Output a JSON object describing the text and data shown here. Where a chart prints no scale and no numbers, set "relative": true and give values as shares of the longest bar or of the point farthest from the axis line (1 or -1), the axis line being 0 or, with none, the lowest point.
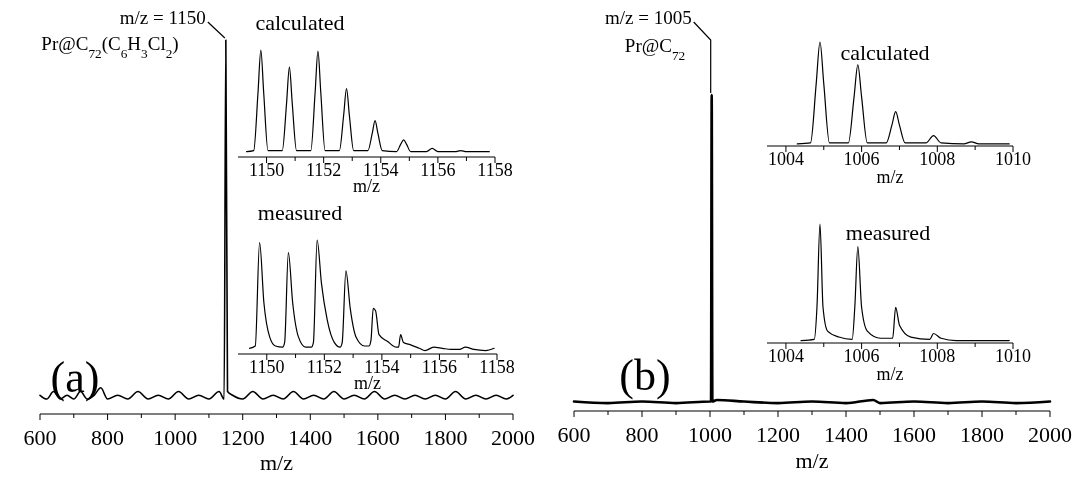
{
  "chart_data": [
    {
      "type": "line",
      "relative": true,
      "xlabel": "m/z",
      "xlim": [
        600,
        2000
      ],
      "xticks": [
        600,
        {
          "value": 700,
          "label": null
        },
        800,
        {
          "value": 900,
          "label": null
        },
        1000,
        {
          "value": 1100,
          "label": null
        },
        1200,
        {
          "value": 1300,
          "label": null
        },
        1400,
        {
          "value": 1500,
          "label": null
        },
        1600,
        {
          "value": 1700,
          "label": null
        },
        1800,
        {
          "value": 1900,
          "label": null
        },
        2000
      ],
      "series": [
        {
          "color": "#000000",
          "x": [
            600,
            620,
            640,
            660,
            680,
            700,
            720,
            740,
            760,
            780,
            800,
            830,
            860,
            890,
            920,
            950,
            980,
            1010,
            1040,
            1070,
            1100,
            1130,
            1145,
            1150,
            1155,
            1170,
            1200,
            1230,
            1260,
            1290,
            1320,
            1350,
            1380,
            1410,
            1440,
            1470,
            1500,
            1530,
            1560,
            1590,
            1620,
            1650,
            1680,
            1710,
            1740,
            1770,
            1800,
            1830,
            1860,
            1890,
            1920,
            1950,
            1980,
            2000
          ],
          "values": [
            0.05,
            0.04,
            0.06,
            0.04,
            0.05,
            0.04,
            0.06,
            0.04,
            0.05,
            0.07,
            0.04,
            0.05,
            0.04,
            0.06,
            0.04,
            0.05,
            0.04,
            0.06,
            0.04,
            0.05,
            0.04,
            0.06,
            0.04,
            1,
            0.06,
            0.05,
            0.04,
            0.06,
            0.04,
            0.05,
            0.04,
            0.06,
            0.04,
            0.05,
            0.04,
            0.06,
            0.04,
            0.05,
            0.04,
            0.06,
            0.04,
            0.05,
            0.04,
            0.05,
            0.04,
            0.05,
            0.04,
            0.06,
            0.04,
            0.05,
            0.04,
            0.05,
            0.04,
            0.05
          ]
        }
      ],
      "annotations": [
        "(a)",
        {
          "text": "m/z = 1150",
          "x": 1150,
          "y": 1
        },
        "Pr@C$_{72}$(C$_{6}$H$_{3}$Cl$_{2}$)"
      ]
    },
    {
      "type": "line",
      "relative": true,
      "title": "calculated",
      "xlabel": "m/z",
      "xlim": [
        1149,
        1158
      ],
      "xticks": [
        1150,
        {
          "value": 1151,
          "label": null
        },
        1152,
        {
          "value": 1153,
          "label": null
        },
        1154,
        {
          "value": 1155,
          "label": null
        },
        1156,
        {
          "value": 1157,
          "label": null
        },
        1158
      ],
      "series": [
        {
          "color": "#000000",
          "x": [
            1149.3,
            1149.55,
            1149.7,
            1149.8,
            1149.9,
            1150.05,
            1150.55,
            1150.7,
            1150.8,
            1150.9,
            1151.05,
            1151.55,
            1151.7,
            1151.8,
            1151.9,
            1152.05,
            1152.55,
            1152.7,
            1152.8,
            1152.9,
            1153.05,
            1153.55,
            1153.7,
            1153.8,
            1153.9,
            1154.05,
            1154.55,
            1154.7,
            1154.8,
            1154.9,
            1155.05,
            1155.6,
            1155.8,
            1156,
            1156.6,
            1156.8,
            1157,
            1157.8
          ],
          "values": [
            0.05,
            0.06,
            0.6,
            1,
            0.6,
            0.06,
            0.06,
            0.5,
            0.84,
            0.5,
            0.06,
            0.06,
            0.6,
            0.99,
            0.6,
            0.06,
            0.06,
            0.39,
            0.64,
            0.39,
            0.06,
            0.06,
            0.22,
            0.34,
            0.22,
            0.06,
            0.05,
            0.12,
            0.16,
            0.12,
            0.05,
            0.05,
            0.08,
            0.05,
            0.05,
            0.06,
            0.05,
            0.05
          ]
        }
      ]
    },
    {
      "type": "line",
      "relative": true,
      "title": "measured",
      "xlabel": "m/z",
      "xlim": [
        1149,
        1158
      ],
      "xticks": [
        1150,
        {
          "value": 1151,
          "label": null
        },
        1152,
        {
          "value": 1153,
          "label": null
        },
        1154,
        {
          "value": 1155,
          "label": null
        },
        1156,
        {
          "value": 1157,
          "label": null
        },
        1158
      ],
      "series": [
        {
          "color": "#000000",
          "x": [
            1149.4,
            1149.6,
            1149.75,
            1149.9,
            1150.1,
            1150.3,
            1150.55,
            1150.62,
            1150.75,
            1150.9,
            1151.1,
            1151.35,
            1151.55,
            1151.62,
            1151.75,
            1151.9,
            1152.1,
            1152.35,
            1152.55,
            1152.62,
            1152.75,
            1152.9,
            1153.1,
            1153.4,
            1153.55,
            1153.62,
            1153.7,
            1153.78,
            1153.9,
            1154.2,
            1154.5,
            1154.58,
            1154.65,
            1154.75,
            1155,
            1155.3,
            1155.5,
            1155.8,
            1156.1,
            1156.4,
            1156.7,
            1156.9,
            1157.2,
            1157.6,
            1157.9
          ],
          "values": [
            0.05,
            0.07,
            0.98,
            0.45,
            0.15,
            0.07,
            0.06,
            0.1,
            0.89,
            0.45,
            0.15,
            0.06,
            0.06,
            0.1,
            1,
            0.62,
            0.3,
            0.1,
            0.06,
            0.1,
            0.73,
            0.4,
            0.15,
            0.07,
            0.07,
            0.12,
            0.4,
            0.38,
            0.17,
            0.11,
            0.06,
            0.06,
            0.17,
            0.1,
            0.08,
            0.05,
            0.03,
            0.06,
            0.05,
            0.04,
            0.04,
            0.06,
            0.04,
            0.03,
            0.05
          ]
        }
      ]
    },
    {
      "type": "line",
      "relative": true,
      "xlabel": "m/z",
      "xlim": [
        600,
        2000
      ],
      "xticks": [
        600,
        {
          "value": 700,
          "label": null
        },
        800,
        {
          "value": 900,
          "label": null
        },
        1000,
        {
          "value": 1100,
          "label": null
        },
        1200,
        {
          "value": 1300,
          "label": null
        },
        1400,
        {
          "value": 1500,
          "label": null
        },
        1600,
        {
          "value": 1700,
          "label": null
        },
        1800,
        {
          "value": 1900,
          "label": null
        },
        2000
      ],
      "series": [
        {
          "color": "#000000",
          "x": [
            600,
            700,
            800,
            900,
            1000,
            1003,
            1005,
            1007,
            1020,
            1100,
            1200,
            1300,
            1400,
            1480,
            1500,
            1600,
            1700,
            1800,
            1900,
            2000
          ],
          "values": [
            0.03,
            0.025,
            0.03,
            0.025,
            0.03,
            0.03,
            1,
            0.03,
            0.035,
            0.03,
            0.025,
            0.03,
            0.025,
            0.035,
            0.025,
            0.03,
            0.025,
            0.03,
            0.025,
            0.03
          ]
        }
      ],
      "annotations": [
        "(b)",
        {
          "text": "m/z = 1005",
          "x": 1005,
          "y": 1
        },
        "Pr@C$_{72}$"
      ]
    },
    {
      "type": "line",
      "relative": true,
      "title": "calculated",
      "xlabel": "m/z",
      "xlim": [
        1003.5,
        1010
      ],
      "xticks": [
        1004,
        {
          "value": 1005,
          "label": null
        },
        1006,
        {
          "value": 1007,
          "label": null
        },
        1008,
        {
          "value": 1009,
          "label": null
        },
        1010
      ],
      "series": [
        {
          "color": "#000000",
          "x": [
            1004.3,
            1004.65,
            1004.8,
            1004.9,
            1005,
            1005.15,
            1005.65,
            1005.8,
            1005.9,
            1006,
            1006.15,
            1006.65,
            1006.8,
            1006.9,
            1007,
            1007.15,
            1007.7,
            1007.9,
            1008.1,
            1008.7,
            1008.9,
            1009.1,
            1009.9
          ],
          "values": [
            0.02,
            0.03,
            0.6,
            1,
            0.6,
            0.03,
            0.03,
            0.47,
            0.78,
            0.47,
            0.03,
            0.03,
            0.2,
            0.33,
            0.2,
            0.03,
            0.03,
            0.1,
            0.03,
            0.02,
            0.04,
            0.02,
            0.02
          ]
        }
      ]
    },
    {
      "type": "line",
      "relative": true,
      "title": "measured",
      "xlabel": "m/z",
      "xlim": [
        1003.5,
        1010
      ],
      "xticks": [
        1004,
        {
          "value": 1005,
          "label": null
        },
        1006,
        {
          "value": 1007,
          "label": null
        },
        1008,
        {
          "value": 1009,
          "label": null
        },
        1010
      ],
      "series": [
        {
          "color": "#000000",
          "x": [
            1004.4,
            1004.75,
            1004.82,
            1004.9,
            1004.98,
            1005.1,
            1005.4,
            1005.75,
            1005.82,
            1005.9,
            1006,
            1006.15,
            1006.5,
            1006.82,
            1006.9,
            1007,
            1007.3,
            1007.8,
            1007.9,
            1008.1,
            1008.5,
            1009.9
          ],
          "values": [
            0.02,
            0.03,
            0.3,
            1,
            0.3,
            0.1,
            0.05,
            0.03,
            0.3,
            0.81,
            0.3,
            0.1,
            0.04,
            0.04,
            0.3,
            0.15,
            0.05,
            0.03,
            0.08,
            0.04,
            0.02,
            0.02
          ]
        }
      ]
    }
  ]
}
